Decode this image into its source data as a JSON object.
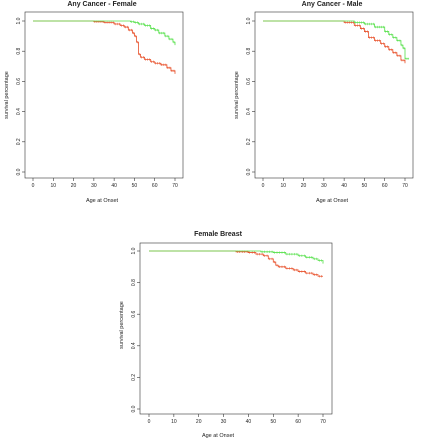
{
  "figure": {
    "panels": [
      {
        "title": "Any Cancer - Female",
        "xlabel": "Age at Onset",
        "ylabel": "survival percentage"
      },
      {
        "title": "Any Cancer - Male",
        "xlabel": "Age at Onset",
        "ylabel": "survival percentage"
      },
      {
        "title": "Female Breast",
        "xlabel": "Age at Onset",
        "ylabel": "survival percentage"
      }
    ]
  },
  "colors": {
    "series_a": "#e8502a",
    "series_b": "#55e04a",
    "axis": "#333333"
  },
  "chart_data": [
    {
      "type": "line",
      "title": "Any Cancer - Female",
      "xlabel": "Age at Onset",
      "ylabel": "survival percentage",
      "xlim": [
        0,
        70
      ],
      "ylim": [
        0,
        1
      ],
      "xticks": [
        "0",
        "10",
        "20",
        "30",
        "40",
        "50",
        "60",
        "70"
      ],
      "yticks": [
        "0.0",
        "0.2",
        "0.4",
        "0.6",
        "0.8",
        "1.0"
      ],
      "grid": false,
      "series": [
        {
          "color": "#e8502a",
          "x": [
            0,
            20,
            30,
            35,
            40,
            43,
            45,
            47,
            49,
            50,
            51,
            52,
            53,
            55,
            58,
            60,
            63,
            66,
            68,
            70
          ],
          "y": [
            1.0,
            1.0,
            0.995,
            0.99,
            0.98,
            0.97,
            0.96,
            0.94,
            0.92,
            0.9,
            0.86,
            0.78,
            0.76,
            0.745,
            0.73,
            0.72,
            0.71,
            0.69,
            0.67,
            0.65
          ]
        },
        {
          "color": "#55e04a",
          "x": [
            0,
            30,
            40,
            48,
            50,
            52,
            55,
            58,
            60,
            62,
            65,
            67,
            69,
            70
          ],
          "y": [
            1.0,
            1.0,
            1.0,
            0.995,
            0.99,
            0.98,
            0.97,
            0.95,
            0.94,
            0.92,
            0.9,
            0.88,
            0.86,
            0.84
          ]
        }
      ]
    },
    {
      "type": "line",
      "title": "Any Cancer - Male",
      "xlabel": "Age at Onset",
      "ylabel": "survival percentage",
      "xlim": [
        0,
        70
      ],
      "ylim": [
        0,
        1
      ],
      "xticks": [
        "0",
        "10",
        "20",
        "30",
        "40",
        "50",
        "60",
        "70"
      ],
      "yticks": [
        "0.0",
        "0.2",
        "0.4",
        "0.6",
        "0.8",
        "1.0"
      ],
      "grid": false,
      "series": [
        {
          "color": "#e8502a",
          "x": [
            0,
            30,
            40,
            45,
            48,
            50,
            52,
            55,
            58,
            60,
            62,
            64,
            66,
            68,
            70
          ],
          "y": [
            1.0,
            1.0,
            0.99,
            0.97,
            0.95,
            0.93,
            0.89,
            0.87,
            0.85,
            0.83,
            0.81,
            0.79,
            0.77,
            0.74,
            0.72
          ]
        },
        {
          "color": "#55e04a",
          "x": [
            0,
            30,
            40,
            45,
            50,
            55,
            60,
            62,
            64,
            66,
            68,
            69,
            70,
            72
          ],
          "y": [
            1.0,
            1.0,
            1.0,
            0.99,
            0.98,
            0.96,
            0.93,
            0.91,
            0.89,
            0.87,
            0.84,
            0.82,
            0.75,
            0.75
          ]
        }
      ]
    },
    {
      "type": "line",
      "title": "Female Breast",
      "xlabel": "Age at Onset",
      "ylabel": "survival percentage",
      "xlim": [
        0,
        70
      ],
      "ylim": [
        0,
        1
      ],
      "xticks": [
        "0",
        "10",
        "20",
        "30",
        "40",
        "50",
        "60",
        "70"
      ],
      "yticks": [
        "0.0",
        "0.2",
        "0.4",
        "0.6",
        "0.8",
        "1.0"
      ],
      "grid": false,
      "series": [
        {
          "color": "#e8502a",
          "x": [
            0,
            30,
            35,
            40,
            43,
            46,
            48,
            50,
            51,
            52,
            55,
            58,
            60,
            63,
            66,
            68,
            70
          ],
          "y": [
            1.0,
            1.0,
            0.995,
            0.99,
            0.98,
            0.97,
            0.95,
            0.93,
            0.91,
            0.9,
            0.89,
            0.88,
            0.87,
            0.86,
            0.85,
            0.84,
            0.84
          ]
        },
        {
          "color": "#55e04a",
          "x": [
            0,
            40,
            45,
            50,
            55,
            60,
            63,
            66,
            68,
            70
          ],
          "y": [
            1.0,
            1.0,
            0.995,
            0.99,
            0.98,
            0.97,
            0.96,
            0.95,
            0.94,
            0.92
          ]
        }
      ]
    }
  ]
}
